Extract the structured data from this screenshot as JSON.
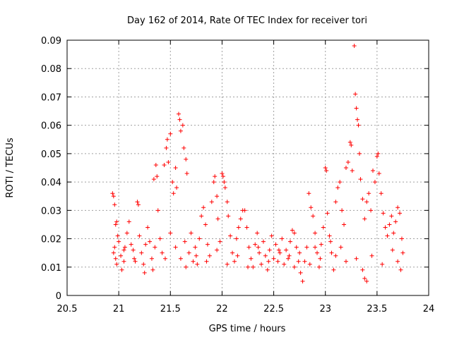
{
  "chart_data": {
    "type": "scatter",
    "title": "Day 162 of 2014, Rate Of TEC Index for receiver tori",
    "xlabel": "GPS time / hours",
    "ylabel": "ROTI / TECUs",
    "xlim": [
      20.5,
      24
    ],
    "ylim": [
      0,
      0.09
    ],
    "xticks": [
      20.5,
      21,
      21.5,
      22,
      22.5,
      23,
      23.5,
      24
    ],
    "xtick_labels": [
      "20.5",
      "21",
      "21.5",
      "22",
      "22.5",
      "23",
      "23.5",
      "24"
    ],
    "yticks": [
      0,
      0.01,
      0.02,
      0.03,
      0.04,
      0.05,
      0.06,
      0.07,
      0.08,
      0.09
    ],
    "ytick_labels": [
      "0",
      "0.01",
      "0.02",
      "0.03",
      "0.04",
      "0.05",
      "0.06",
      "0.07",
      "0.08",
      "0.09"
    ],
    "grid": true,
    "marker": "+",
    "colors": {
      "points": "#ff0000",
      "grid": "#a0a0a0",
      "axes": "#000000"
    },
    "series": [
      {
        "name": "ROTI",
        "points": [
          [
            20.94,
            0.036
          ],
          [
            20.95,
            0.035
          ],
          [
            20.96,
            0.032
          ],
          [
            20.97,
            0.025
          ],
          [
            20.98,
            0.026
          ],
          [
            20.99,
            0.021
          ],
          [
            20.95,
            0.015
          ],
          [
            20.96,
            0.017
          ],
          [
            20.97,
            0.013
          ],
          [
            20.98,
            0.011
          ],
          [
            21.0,
            0.019
          ],
          [
            21.02,
            0.014
          ],
          [
            21.03,
            0.009
          ],
          [
            21.05,
            0.012
          ],
          [
            21.06,
            0.017
          ],
          [
            21.08,
            0.022
          ],
          [
            21.1,
            0.026
          ],
          [
            21.12,
            0.018
          ],
          [
            21.14,
            0.016
          ],
          [
            21.16,
            0.012
          ],
          [
            21.18,
            0.033
          ],
          [
            21.19,
            0.032
          ],
          [
            21.2,
            0.021
          ],
          [
            21.22,
            0.015
          ],
          [
            21.24,
            0.011
          ],
          [
            21.26,
            0.018
          ],
          [
            21.28,
            0.024
          ],
          [
            21.3,
            0.019
          ],
          [
            21.32,
            0.013
          ],
          [
            21.33,
            0.009
          ],
          [
            21.34,
            0.041
          ],
          [
            21.36,
            0.046
          ],
          [
            21.37,
            0.042
          ],
          [
            21.38,
            0.03
          ],
          [
            21.4,
            0.02
          ],
          [
            21.42,
            0.015
          ],
          [
            21.44,
            0.046
          ],
          [
            21.46,
            0.052
          ],
          [
            21.47,
            0.055
          ],
          [
            21.48,
            0.047
          ],
          [
            21.5,
            0.057
          ],
          [
            21.52,
            0.04
          ],
          [
            21.53,
            0.036
          ],
          [
            21.55,
            0.045
          ],
          [
            21.56,
            0.038
          ],
          [
            21.58,
            0.064
          ],
          [
            21.59,
            0.062
          ],
          [
            21.6,
            0.058
          ],
          [
            21.62,
            0.06
          ],
          [
            21.63,
            0.052
          ],
          [
            21.65,
            0.048
          ],
          [
            21.66,
            0.043
          ],
          [
            21.5,
            0.022
          ],
          [
            21.55,
            0.017
          ],
          [
            21.6,
            0.013
          ],
          [
            21.64,
            0.019
          ],
          [
            21.68,
            0.015
          ],
          [
            21.7,
            0.022
          ],
          [
            21.72,
            0.012
          ],
          [
            21.74,
            0.017
          ],
          [
            21.76,
            0.011
          ],
          [
            21.78,
            0.02
          ],
          [
            21.8,
            0.028
          ],
          [
            21.82,
            0.031
          ],
          [
            21.84,
            0.025
          ],
          [
            21.86,
            0.018
          ],
          [
            21.88,
            0.014
          ],
          [
            21.9,
            0.033
          ],
          [
            21.92,
            0.04
          ],
          [
            21.93,
            0.042
          ],
          [
            21.95,
            0.035
          ],
          [
            21.96,
            0.027
          ],
          [
            21.98,
            0.019
          ],
          [
            22.0,
            0.043
          ],
          [
            22.01,
            0.042
          ],
          [
            22.02,
            0.04
          ],
          [
            22.03,
            0.038
          ],
          [
            22.05,
            0.033
          ],
          [
            22.06,
            0.028
          ],
          [
            22.08,
            0.021
          ],
          [
            22.1,
            0.015
          ],
          [
            22.12,
            0.012
          ],
          [
            22.14,
            0.02
          ],
          [
            22.16,
            0.024
          ],
          [
            22.18,
            0.027
          ],
          [
            22.2,
            0.03
          ],
          [
            22.22,
            0.03
          ],
          [
            22.24,
            0.024
          ],
          [
            22.26,
            0.017
          ],
          [
            22.28,
            0.013
          ],
          [
            22.3,
            0.01
          ],
          [
            22.32,
            0.018
          ],
          [
            22.34,
            0.022
          ],
          [
            22.36,
            0.015
          ],
          [
            22.38,
            0.011
          ],
          [
            22.4,
            0.019
          ],
          [
            22.42,
            0.014
          ],
          [
            22.44,
            0.009
          ],
          [
            22.46,
            0.016
          ],
          [
            22.48,
            0.021
          ],
          [
            22.5,
            0.013
          ],
          [
            22.52,
            0.018
          ],
          [
            22.54,
            0.012
          ],
          [
            22.56,
            0.015
          ],
          [
            22.58,
            0.02
          ],
          [
            22.6,
            0.011
          ],
          [
            22.62,
            0.016
          ],
          [
            22.64,
            0.013
          ],
          [
            22.66,
            0.019
          ],
          [
            22.68,
            0.023
          ],
          [
            22.7,
            0.022
          ],
          [
            22.72,
            0.017
          ],
          [
            22.74,
            0.012
          ],
          [
            22.76,
            0.008
          ],
          [
            22.78,
            0.005
          ],
          [
            22.8,
            0.012
          ],
          [
            22.82,
            0.017
          ],
          [
            22.84,
            0.036
          ],
          [
            22.86,
            0.031
          ],
          [
            22.88,
            0.028
          ],
          [
            22.9,
            0.022
          ],
          [
            22.92,
            0.015
          ],
          [
            22.94,
            0.01
          ],
          [
            22.96,
            0.018
          ],
          [
            22.98,
            0.024
          ],
          [
            23.0,
            0.045
          ],
          [
            23.01,
            0.044
          ],
          [
            23.02,
            0.029
          ],
          [
            23.04,
            0.021
          ],
          [
            23.06,
            0.015
          ],
          [
            23.08,
            0.009
          ],
          [
            23.1,
            0.033
          ],
          [
            23.12,
            0.038
          ],
          [
            23.14,
            0.04
          ],
          [
            23.16,
            0.03
          ],
          [
            23.18,
            0.025
          ],
          [
            23.2,
            0.045
          ],
          [
            23.22,
            0.047
          ],
          [
            23.24,
            0.054
          ],
          [
            23.25,
            0.053
          ],
          [
            23.26,
            0.044
          ],
          [
            23.28,
            0.088
          ],
          [
            23.29,
            0.071
          ],
          [
            23.3,
            0.066
          ],
          [
            23.31,
            0.062
          ],
          [
            23.32,
            0.06
          ],
          [
            23.33,
            0.05
          ],
          [
            23.34,
            0.041
          ],
          [
            23.36,
            0.034
          ],
          [
            23.38,
            0.027
          ],
          [
            23.4,
            0.033
          ],
          [
            23.42,
            0.036
          ],
          [
            23.44,
            0.03
          ],
          [
            23.46,
            0.044
          ],
          [
            23.48,
            0.04
          ],
          [
            23.5,
            0.049
          ],
          [
            23.51,
            0.05
          ],
          [
            23.52,
            0.043
          ],
          [
            23.54,
            0.036
          ],
          [
            23.56,
            0.029
          ],
          [
            23.58,
            0.024
          ],
          [
            23.6,
            0.021
          ],
          [
            23.62,
            0.025
          ],
          [
            23.64,
            0.028
          ],
          [
            23.66,
            0.022
          ],
          [
            23.68,
            0.026
          ],
          [
            23.7,
            0.031
          ],
          [
            23.72,
            0.029
          ],
          [
            23.74,
            0.02
          ],
          [
            23.75,
            0.015
          ],
          [
            23.38,
            0.006
          ],
          [
            23.4,
            0.005
          ],
          [
            23.36,
            0.009
          ],
          [
            23.3,
            0.013
          ],
          [
            23.2,
            0.012
          ],
          [
            23.15,
            0.017
          ],
          [
            23.1,
            0.014
          ],
          [
            23.05,
            0.019
          ],
          [
            22.95,
            0.013
          ],
          [
            22.9,
            0.017
          ],
          [
            22.85,
            0.011
          ],
          [
            22.75,
            0.015
          ],
          [
            22.7,
            0.01
          ],
          [
            22.65,
            0.014
          ],
          [
            22.55,
            0.016
          ],
          [
            22.45,
            0.012
          ],
          [
            22.35,
            0.017
          ],
          [
            22.25,
            0.01
          ],
          [
            22.15,
            0.014
          ],
          [
            22.05,
            0.011
          ],
          [
            21.95,
            0.016
          ],
          [
            21.85,
            0.012
          ],
          [
            21.75,
            0.014
          ],
          [
            21.65,
            0.01
          ],
          [
            21.45,
            0.013
          ],
          [
            21.35,
            0.017
          ],
          [
            21.25,
            0.008
          ],
          [
            21.15,
            0.013
          ],
          [
            21.05,
            0.016
          ],
          [
            23.45,
            0.014
          ],
          [
            23.55,
            0.011
          ],
          [
            23.65,
            0.016
          ],
          [
            23.7,
            0.012
          ],
          [
            23.73,
            0.009
          ]
        ]
      }
    ]
  }
}
